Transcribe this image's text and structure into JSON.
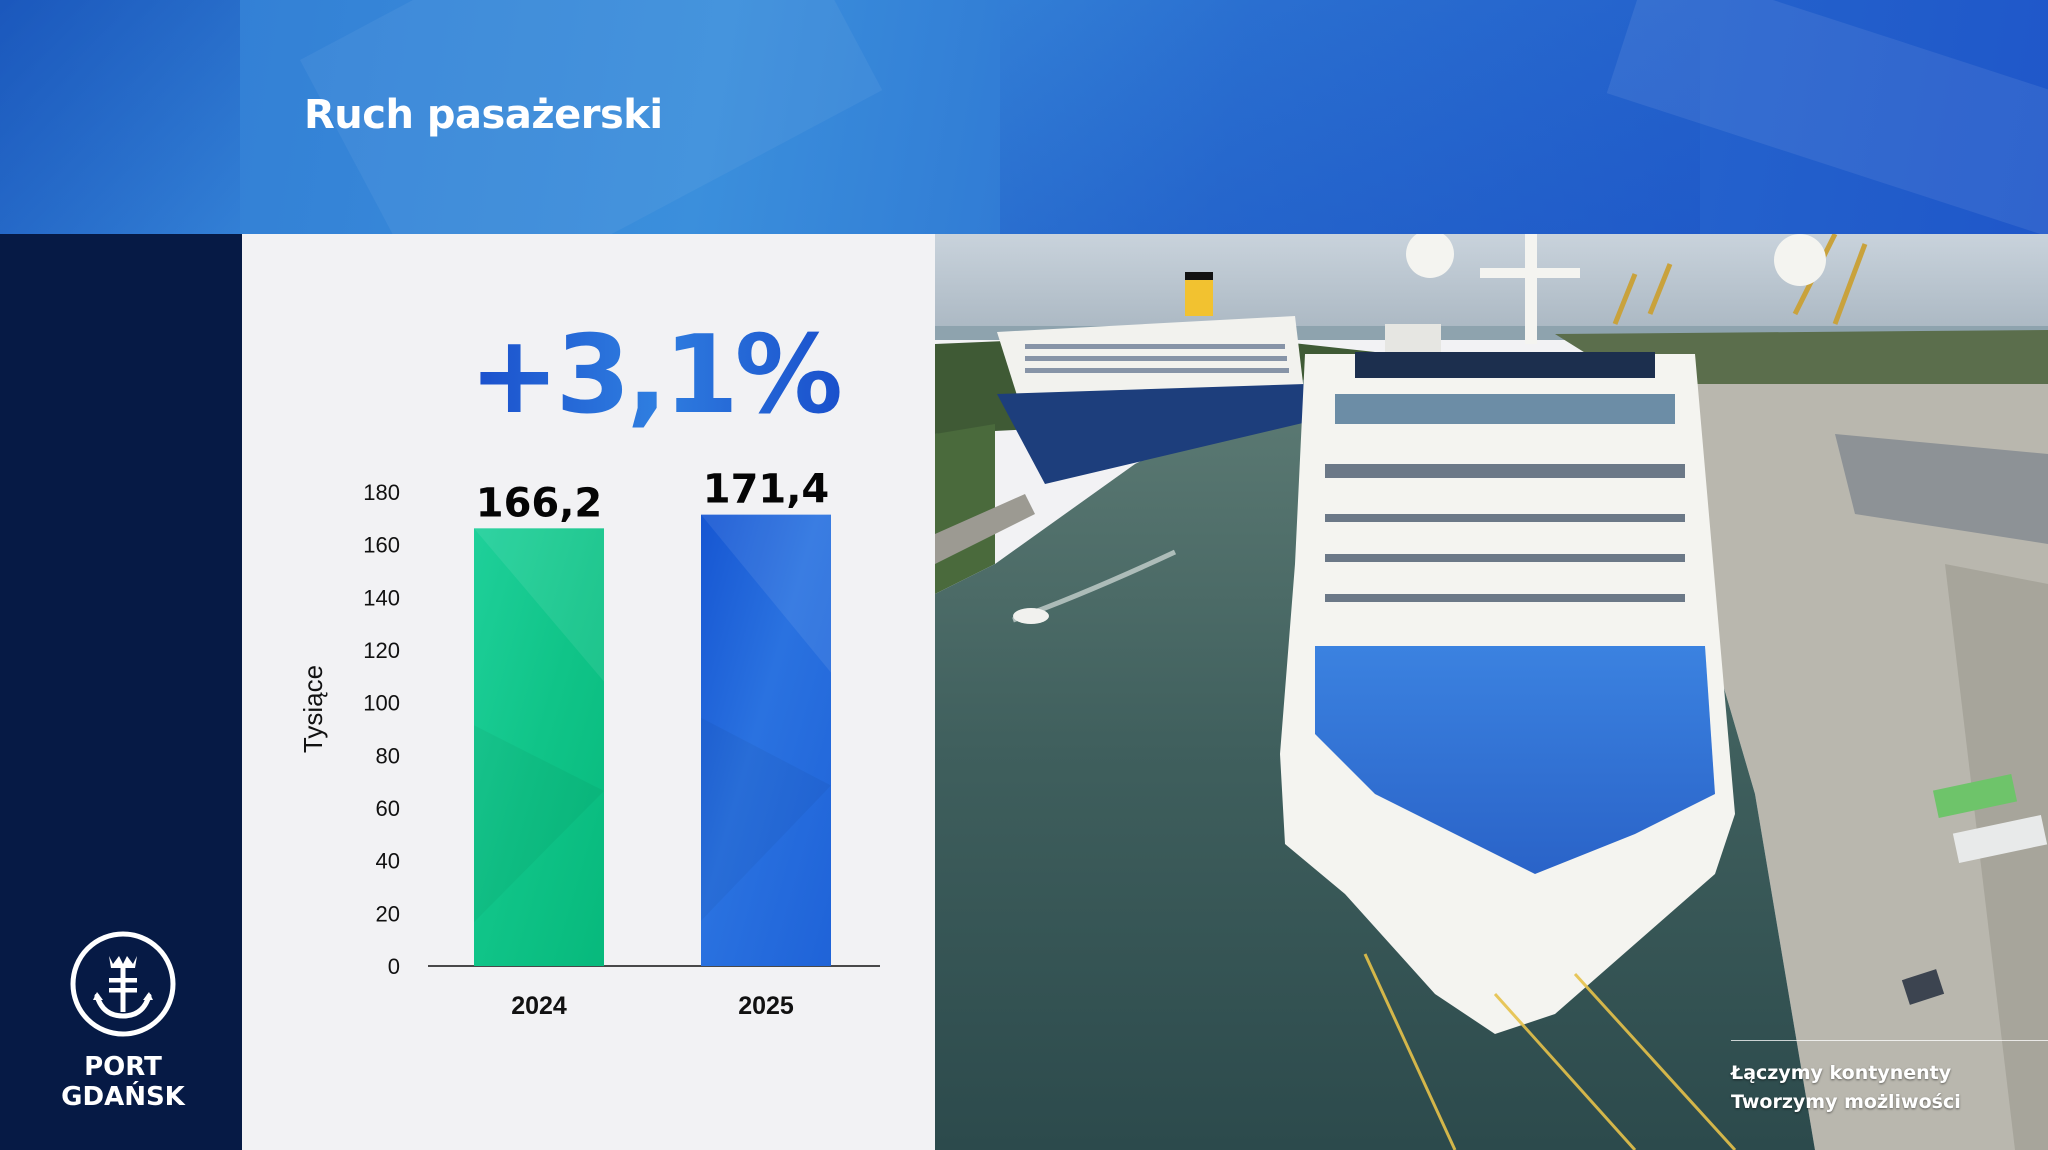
{
  "header": {
    "title": "Ruch pasażerski"
  },
  "logo": {
    "text": "PORT\nGDAŃSK"
  },
  "tagline": {
    "line1": "Łączymy kontynenty",
    "line2": "Tworzymy możliwości"
  },
  "colors": {
    "header_blue": "#2f79d2",
    "navy": "#061a45",
    "bar_2024": "#10c488",
    "bar_2025": "#1f63d8",
    "headline": "#1f57d0"
  },
  "chart_data": {
    "type": "bar",
    "headline": "+3,1%",
    "ylabel": "Tysiące",
    "xlabel": "",
    "ylim": [
      0,
      180
    ],
    "yticks": [
      0,
      20,
      40,
      60,
      80,
      100,
      120,
      140,
      160,
      180
    ],
    "categories": [
      "2024",
      "2025"
    ],
    "values": [
      166.2,
      171.4
    ],
    "value_labels": [
      "166,2",
      "171,4"
    ],
    "grid": false
  }
}
